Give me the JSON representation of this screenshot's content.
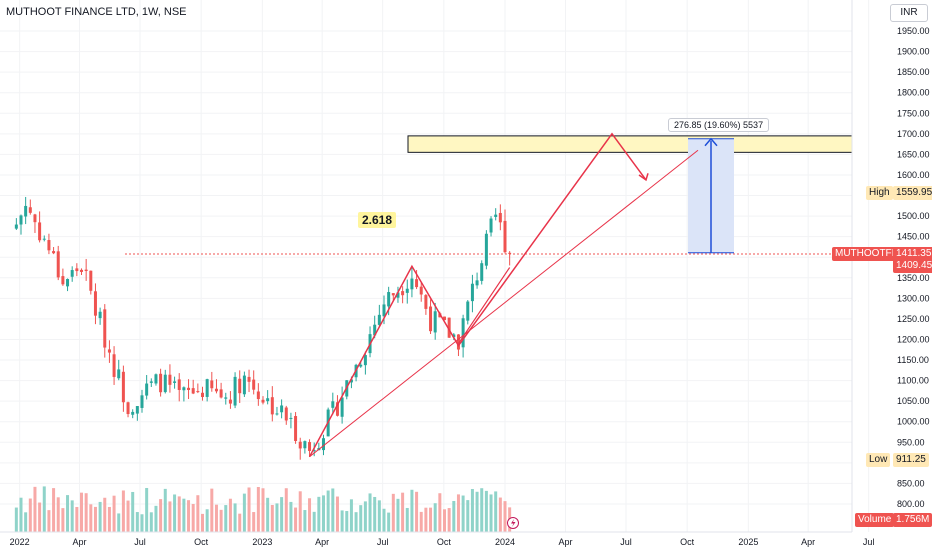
{
  "header": {
    "title": "MUTHOOT FINANCE LTD, 1W, NSE",
    "currency": "INR"
  },
  "annotations": {
    "fib_label": "2.618",
    "measure_label": "276.85 (19.60%) 5537"
  },
  "price_scale": {
    "high_label": "High",
    "high_value": "1559.95",
    "low_label": "Low",
    "low_value": "911.25",
    "symbol_tag": "MUTHOOTFIN",
    "last_price": "1411.35",
    "last_close": "1409.45",
    "volume_label": "Volume",
    "volume_value": "1.756M"
  },
  "colors": {
    "up": "#26a69a",
    "down": "#ef5350",
    "up_volume": "#8fd3c9",
    "down_volume": "#f7a9a7",
    "drawing": "#e8344a",
    "zone": "#fff7c2",
    "measure": "#1e4fd8",
    "measure_fill": "#dbe4f8"
  },
  "chart_data": {
    "type": "candlestick",
    "title": "MUTHOOT FINANCE LTD, 1W, NSE",
    "ylim": [
      770,
      1990
    ],
    "y_ticks": [
      800,
      850,
      900,
      950,
      1000,
      1050,
      1100,
      1150,
      1200,
      1250,
      1300,
      1350,
      1400,
      1450,
      1500,
      1550,
      1600,
      1650,
      1700,
      1750,
      1800,
      1850,
      1900,
      1950
    ],
    "x_ticks": [
      "2022",
      "Apr",
      "Jul",
      "Oct",
      "2023",
      "Apr",
      "Jul",
      "Oct",
      "2024",
      "Apr",
      "Jul",
      "Oct",
      "2025",
      "Apr",
      "Jul"
    ],
    "close_path": [
      [
        "2021-12-27",
        1480
      ],
      [
        "2022-01-10",
        1530
      ],
      [
        "2022-02-14",
        1420
      ],
      [
        "2022-03-07",
        1340
      ],
      [
        "2022-04-04",
        1380
      ],
      [
        "2022-05-16",
        1170
      ],
      [
        "2022-06-13",
        1040
      ],
      [
        "2022-07-04",
        1070
      ],
      [
        "2022-08-01",
        1100
      ],
      [
        "2022-08-29",
        1060
      ],
      [
        "2022-10-03",
        1080
      ],
      [
        "2022-11-07",
        1060
      ],
      [
        "2022-12-05",
        1110
      ],
      [
        "2023-01-02",
        1060
      ],
      [
        "2023-02-06",
        1010
      ],
      [
        "2023-03-13",
        930
      ],
      [
        "2023-04-17",
        1020
      ],
      [
        "2023-05-29",
        1160
      ],
      [
        "2023-07-03",
        1290
      ],
      [
        "2023-08-14",
        1360
      ],
      [
        "2023-09-11",
        1250
      ],
      [
        "2023-10-23",
        1200
      ],
      [
        "2023-11-20",
        1360
      ],
      [
        "2023-12-18",
        1500
      ],
      [
        "2024-01-08",
        1409.45
      ]
    ],
    "last_close": 1409.45,
    "high": 1559.95,
    "low": 911.25,
    "volume_last": "1.756M",
    "target_zone": [
      1655,
      1695
    ],
    "projection": {
      "from": 1411.35,
      "change": 276.85,
      "percent": "19.60%",
      "bars": 5537
    },
    "fib_label": "2.618"
  }
}
